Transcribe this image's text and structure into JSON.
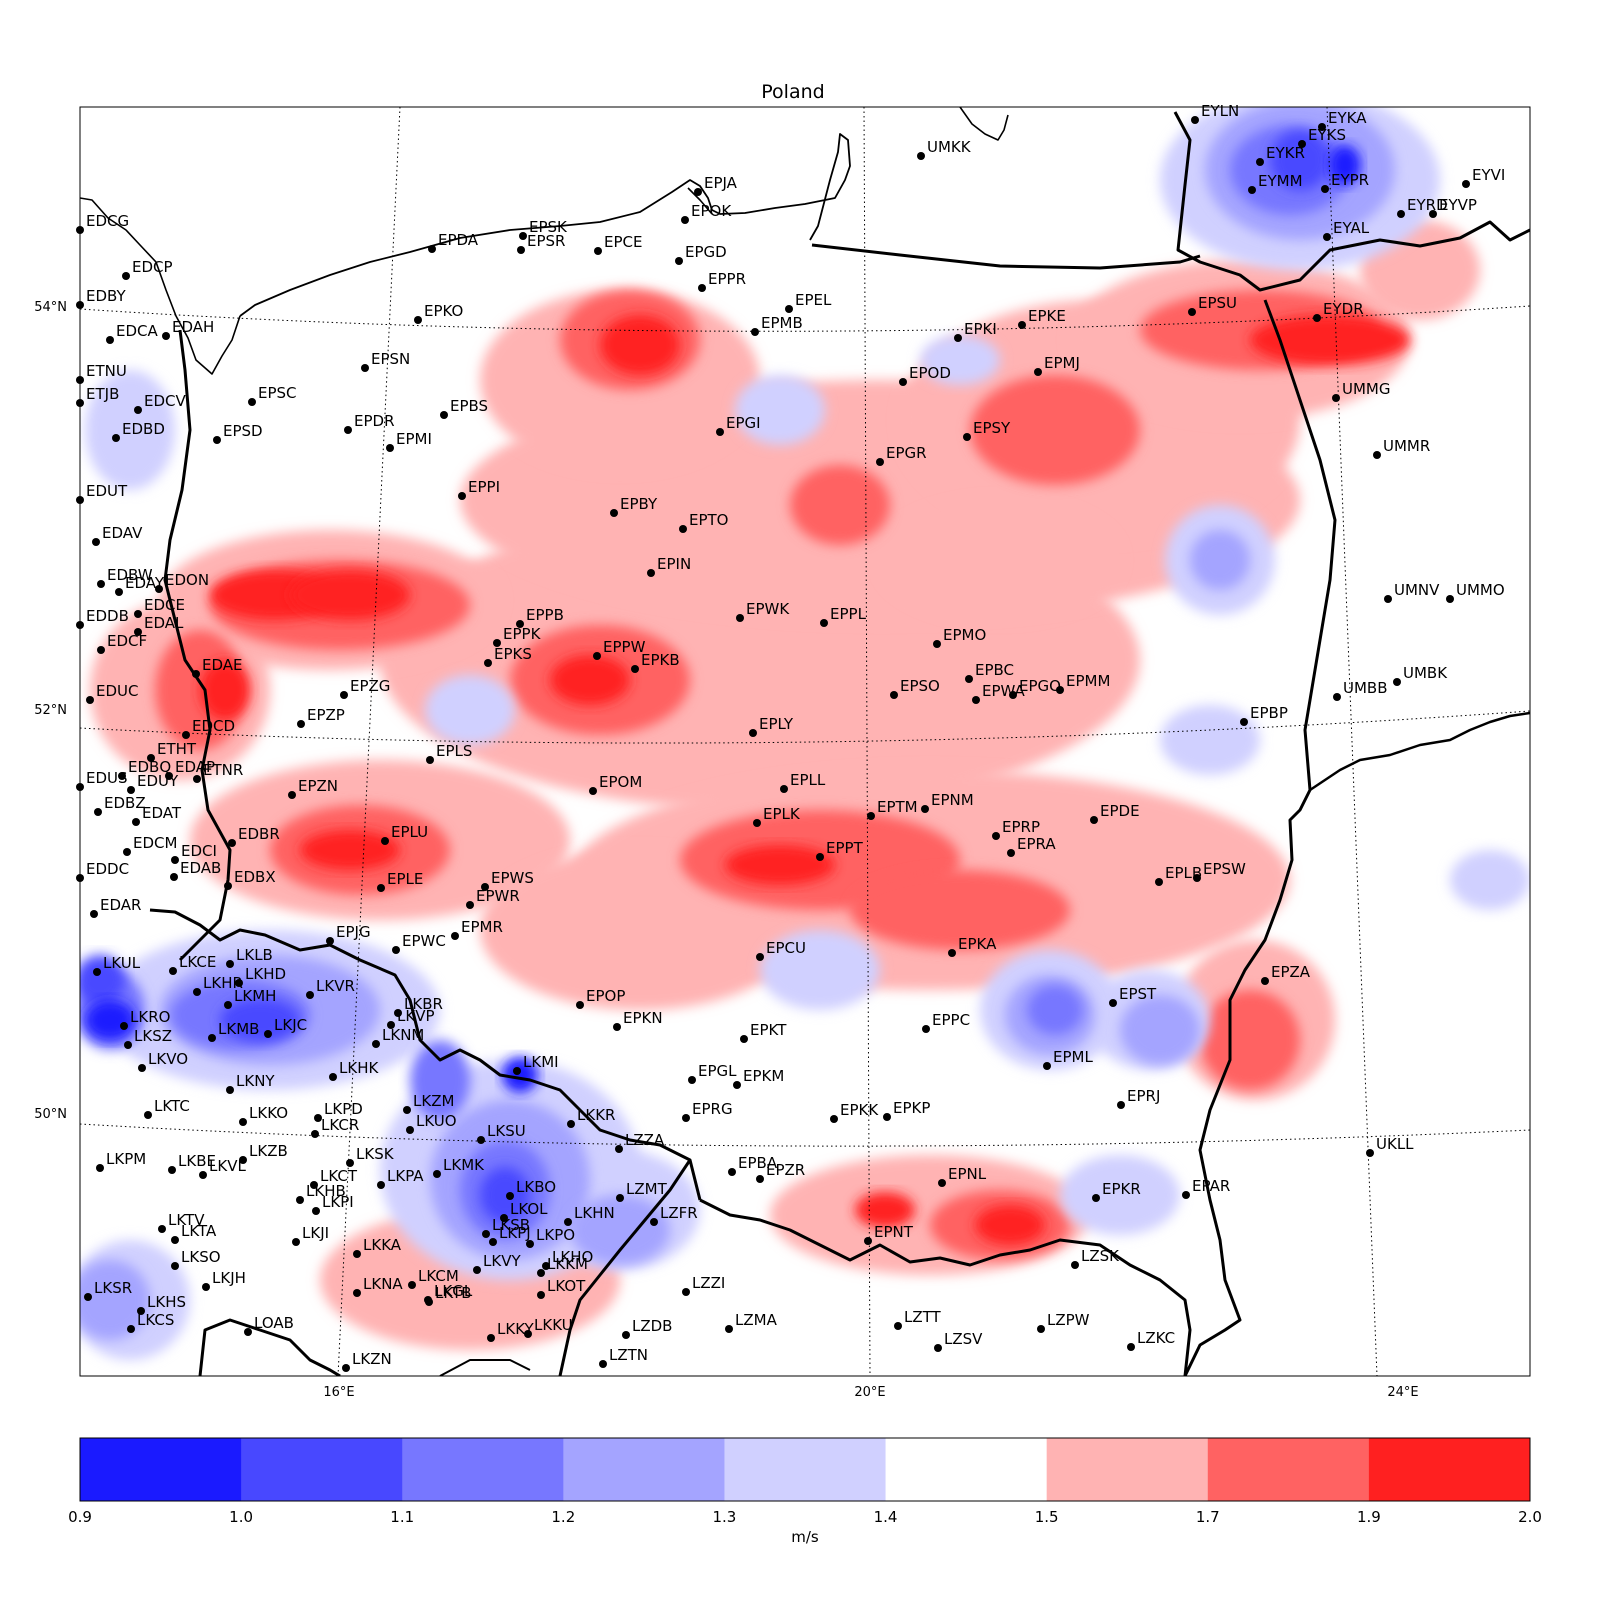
{
  "map": {
    "title": "Poland",
    "lat_labels": [
      "54°N",
      "52°N",
      "50°N"
    ],
    "lon_labels": [
      "16°E",
      "20°E",
      "24°E"
    ],
    "colors": {
      "ramp": [
        "#1a1aff",
        "#4848ff",
        "#7777ff",
        "#a4a4ff",
        "#d0d0ff",
        "#ffffff",
        "#ffb3b3",
        "#ff6262",
        "#ff2020"
      ],
      "coast": "#000000",
      "station": "#000000"
    },
    "stations": [
      {
        "id": "EPJA"
      },
      {
        "id": "EPOK"
      },
      {
        "id": "EPSK"
      },
      {
        "id": "EPSR"
      },
      {
        "id": "EPCE"
      },
      {
        "id": "EPGD"
      },
      {
        "id": "EPDA"
      },
      {
        "id": "EPPR"
      },
      {
        "id": "EPEL"
      },
      {
        "id": "EPMB"
      },
      {
        "id": "EPKO"
      },
      {
        "id": "EPSN"
      },
      {
        "id": "EPSC"
      },
      {
        "id": "EPSD"
      },
      {
        "id": "EPDR"
      },
      {
        "id": "EPMI"
      },
      {
        "id": "EPBS"
      },
      {
        "id": "EPKI"
      },
      {
        "id": "EPKE"
      },
      {
        "id": "EPMJ"
      },
      {
        "id": "EPSU"
      },
      {
        "id": "EPOD"
      },
      {
        "id": "EPSY"
      },
      {
        "id": "EPGI"
      },
      {
        "id": "EPGR"
      },
      {
        "id": "EPPI"
      },
      {
        "id": "EPBY"
      },
      {
        "id": "EPTO"
      },
      {
        "id": "EPIN"
      },
      {
        "id": "EPWK"
      },
      {
        "id": "EPPL"
      },
      {
        "id": "EPPB"
      },
      {
        "id": "EPPK"
      },
      {
        "id": "EPKS"
      },
      {
        "id": "EPPW"
      },
      {
        "id": "EPKB"
      },
      {
        "id": "EPMO"
      },
      {
        "id": "EPBC"
      },
      {
        "id": "EPSO"
      },
      {
        "id": "EPWA"
      },
      {
        "id": "EPGO"
      },
      {
        "id": "EPMM"
      },
      {
        "id": "EPZG"
      },
      {
        "id": "EPZP"
      },
      {
        "id": "EPLY"
      },
      {
        "id": "EPBP"
      },
      {
        "id": "EPLS"
      },
      {
        "id": "EPOM"
      },
      {
        "id": "EPLL"
      },
      {
        "id": "EPZN"
      },
      {
        "id": "EPLK"
      },
      {
        "id": "EPTM"
      },
      {
        "id": "EPNM"
      },
      {
        "id": "EPDE"
      },
      {
        "id": "EPRP"
      },
      {
        "id": "EPRA"
      },
      {
        "id": "EPLU"
      },
      {
        "id": "EPPT"
      },
      {
        "id": "EPLE"
      },
      {
        "id": "EPWS"
      },
      {
        "id": "EPWR"
      },
      {
        "id": "EPLB"
      },
      {
        "id": "EPSW"
      },
      {
        "id": "EPMR"
      },
      {
        "id": "EPJG"
      },
      {
        "id": "EPWC"
      },
      {
        "id": "EPCU"
      },
      {
        "id": "EPKA"
      },
      {
        "id": "EPZA"
      },
      {
        "id": "EPST"
      },
      {
        "id": "EPOP"
      },
      {
        "id": "EPKN"
      },
      {
        "id": "EPPC"
      },
      {
        "id": "EPKT"
      },
      {
        "id": "EPML"
      },
      {
        "id": "EPGL"
      },
      {
        "id": "EPKM"
      },
      {
        "id": "EPRG"
      },
      {
        "id": "EPKK"
      },
      {
        "id": "EPKP"
      },
      {
        "id": "EPRJ"
      },
      {
        "id": "EPBA"
      },
      {
        "id": "EPZR"
      },
      {
        "id": "EPNL"
      },
      {
        "id": "EPKR"
      },
      {
        "id": "EPAR"
      },
      {
        "id": "EPNT"
      },
      {
        "id": "UMKK"
      },
      {
        "id": "UMMG"
      },
      {
        "id": "UMMR"
      },
      {
        "id": "UMNV"
      },
      {
        "id": "UMMO"
      },
      {
        "id": "UMBB"
      },
      {
        "id": "UMBK"
      },
      {
        "id": "UKLL"
      },
      {
        "id": "EYLN"
      },
      {
        "id": "EYKA"
      },
      {
        "id": "EYKS"
      },
      {
        "id": "EYKR"
      },
      {
        "id": "EYMM"
      },
      {
        "id": "EYPR"
      },
      {
        "id": "EYAL"
      },
      {
        "id": "EYVI"
      },
      {
        "id": "EYRD"
      },
      {
        "id": "EYVP"
      },
      {
        "id": "EYDR"
      },
      {
        "id": "EDCG"
      },
      {
        "id": "EDCP"
      },
      {
        "id": "EDBY"
      },
      {
        "id": "EDCA"
      },
      {
        "id": "EDAH"
      },
      {
        "id": "ETNU"
      },
      {
        "id": "ETJB"
      },
      {
        "id": "EDCV"
      },
      {
        "id": "EDBD"
      },
      {
        "id": "EDUT"
      },
      {
        "id": "EDAV"
      },
      {
        "id": "EDBW"
      },
      {
        "id": "EDAY"
      },
      {
        "id": "EDON"
      },
      {
        "id": "EDCE"
      },
      {
        "id": "EDDB"
      },
      {
        "id": "EDAL"
      },
      {
        "id": "EDCF"
      },
      {
        "id": "EDAE"
      },
      {
        "id": "EDUC"
      },
      {
        "id": "EDCD"
      },
      {
        "id": "ETHT"
      },
      {
        "id": "EDBQ"
      },
      {
        "id": "EDAP"
      },
      {
        "id": "ETNR"
      },
      {
        "id": "EDUS"
      },
      {
        "id": "EDUY"
      },
      {
        "id": "EDBZ"
      },
      {
        "id": "EDAT"
      },
      {
        "id": "EDBR"
      },
      {
        "id": "EDCM"
      },
      {
        "id": "EDCI"
      },
      {
        "id": "EDAB"
      },
      {
        "id": "EDDC"
      },
      {
        "id": "EDBX"
      },
      {
        "id": "EDAR"
      },
      {
        "id": "LKUL"
      },
      {
        "id": "LKCE"
      },
      {
        "id": "LKLB"
      },
      {
        "id": "LKHD"
      },
      {
        "id": "LKHR"
      },
      {
        "id": "LKMH"
      },
      {
        "id": "LKVR"
      },
      {
        "id": "LKRO"
      },
      {
        "id": "LKMB"
      },
      {
        "id": "LKJC"
      },
      {
        "id": "LKSZ"
      },
      {
        "id": "LKBR"
      },
      {
        "id": "LKVP"
      },
      {
        "id": "LKNM"
      },
      {
        "id": "LKHK"
      },
      {
        "id": "LKVO"
      },
      {
        "id": "LKNY"
      },
      {
        "id": "LKMI"
      },
      {
        "id": "LKTC"
      },
      {
        "id": "LKKO"
      },
      {
        "id": "LKPD"
      },
      {
        "id": "LKCR"
      },
      {
        "id": "LKZM"
      },
      {
        "id": "LKUO"
      },
      {
        "id": "LKSU"
      },
      {
        "id": "LKKR"
      },
      {
        "id": "LKZB"
      },
      {
        "id": "LKSK"
      },
      {
        "id": "LKPA"
      },
      {
        "id": "LKMK"
      },
      {
        "id": "LKPM"
      },
      {
        "id": "LKBE"
      },
      {
        "id": "LKVL"
      },
      {
        "id": "LKCT"
      },
      {
        "id": "LKHB"
      },
      {
        "id": "LKPI"
      },
      {
        "id": "LKBO"
      },
      {
        "id": "LKOL"
      },
      {
        "id": "LKSB"
      },
      {
        "id": "LKPJ"
      },
      {
        "id": "LKPO"
      },
      {
        "id": "LKHN"
      },
      {
        "id": "LKTA"
      },
      {
        "id": "LKTV"
      },
      {
        "id": "LKJI"
      },
      {
        "id": "LKKA"
      },
      {
        "id": "LKSO"
      },
      {
        "id": "LKJH"
      },
      {
        "id": "LKNA"
      },
      {
        "id": "LKCM"
      },
      {
        "id": "LKGL"
      },
      {
        "id": "LKTB"
      },
      {
        "id": "LKVY"
      },
      {
        "id": "LKHO"
      },
      {
        "id": "LKKM"
      },
      {
        "id": "LKOT"
      },
      {
        "id": "LKSR"
      },
      {
        "id": "LKHS"
      },
      {
        "id": "LKCS"
      },
      {
        "id": "LKKY"
      },
      {
        "id": "LKKU"
      },
      {
        "id": "LKZN"
      },
      {
        "id": "LOAB"
      },
      {
        "id": "LZZA"
      },
      {
        "id": "LZMT"
      },
      {
        "id": "LZFR"
      },
      {
        "id": "LZZI"
      },
      {
        "id": "LZMA"
      },
      {
        "id": "LZDB"
      },
      {
        "id": "LZTN"
      },
      {
        "id": "LZTT"
      },
      {
        "id": "LZSV"
      },
      {
        "id": "LZPW"
      },
      {
        "id": "LZKC"
      },
      {
        "id": "LZSK"
      }
    ]
  },
  "colorbar": {
    "tick_labels": [
      "0.9",
      "1.0",
      "1.1",
      "1.2",
      "1.3",
      "1.4",
      "1.5",
      "1.7",
      "1.9",
      "2.0"
    ],
    "unit": "m/s"
  }
}
